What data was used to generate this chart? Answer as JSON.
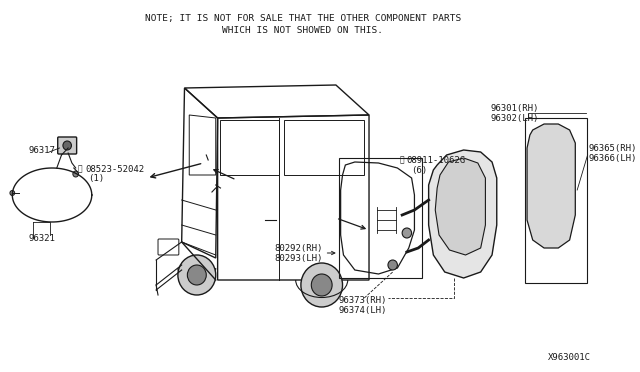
{
  "note_line1": "NOTE; IT IS NOT FOR SALE THAT THE OTHER COMPONENT PARTS",
  "note_line2": "WHICH IS NOT SHOWED ON THIS.",
  "diagram_id": "X963001C",
  "bg_color": "#ffffff",
  "line_color": "#1a1a1a",
  "fig_width": 6.4,
  "fig_height": 3.72,
  "dpi": 100,
  "font_size": 6.5,
  "note_font_size": 6.8
}
